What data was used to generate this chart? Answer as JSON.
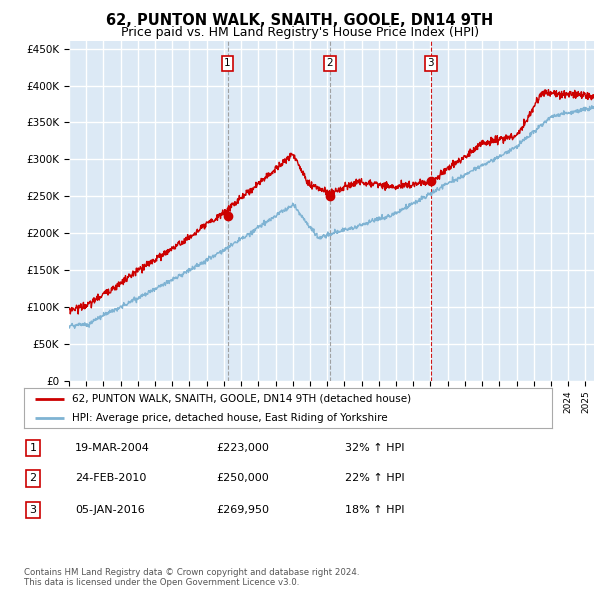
{
  "title": "62, PUNTON WALK, SNAITH, GOOLE, DN14 9TH",
  "subtitle": "Price paid vs. HM Land Registry's House Price Index (HPI)",
  "ylabel_ticks": [
    "£0",
    "£50K",
    "£100K",
    "£150K",
    "£200K",
    "£250K",
    "£300K",
    "£350K",
    "£400K",
    "£450K"
  ],
  "ytick_values": [
    0,
    50000,
    100000,
    150000,
    200000,
    250000,
    300000,
    350000,
    400000,
    450000
  ],
  "ylim": [
    0,
    460000
  ],
  "xlim_start": 1995.0,
  "xlim_end": 2025.5,
  "background_color": "#dce9f5",
  "grid_color": "#ffffff",
  "red_line_color": "#cc0000",
  "blue_line_color": "#7fb3d3",
  "sale_dates": [
    2004.21,
    2010.15,
    2016.01
  ],
  "sale_prices": [
    223000,
    250000,
    269950
  ],
  "sale_labels": [
    "1",
    "2",
    "3"
  ],
  "legend_line1": "62, PUNTON WALK, SNAITH, GOOLE, DN14 9TH (detached house)",
  "legend_line2": "HPI: Average price, detached house, East Riding of Yorkshire",
  "table_rows": [
    [
      "1",
      "19-MAR-2004",
      "£223,000",
      "32% ↑ HPI"
    ],
    [
      "2",
      "24-FEB-2010",
      "£250,000",
      "22% ↑ HPI"
    ],
    [
      "3",
      "05-JAN-2016",
      "£269,950",
      "18% ↑ HPI"
    ]
  ],
  "footnote": "Contains HM Land Registry data © Crown copyright and database right 2024.\nThis data is licensed under the Open Government Licence v3.0.",
  "title_fontsize": 10.5,
  "subtitle_fontsize": 9
}
